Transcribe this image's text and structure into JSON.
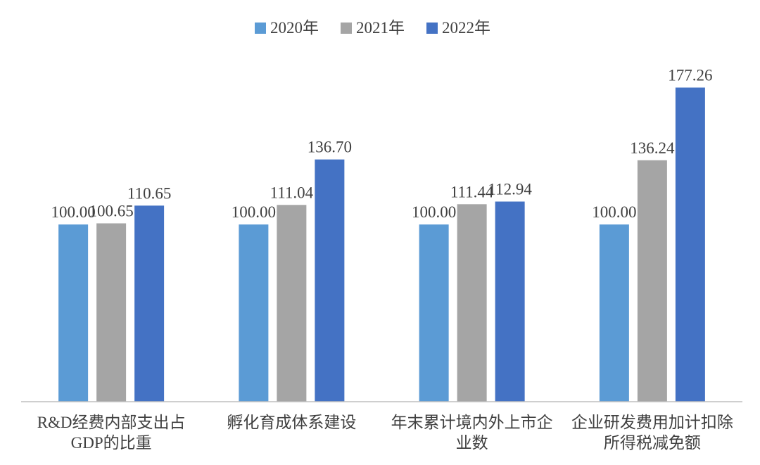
{
  "chart_data": {
    "type": "bar",
    "categories": [
      [
        "R&D经费内部支出占",
        "GDP的比重"
      ],
      [
        "孵化育成体系建设"
      ],
      [
        "年末累计境内外上市企",
        "业数"
      ],
      [
        "企业研发费用加计扣除",
        "所得税减免额"
      ]
    ],
    "series": [
      {
        "name": "2020年",
        "color": "#5b9bd5",
        "values": [
          100.0,
          100.0,
          100.0,
          100.0
        ]
      },
      {
        "name": "2021年",
        "color": "#a5a5a5",
        "values": [
          100.65,
          111.04,
          111.44,
          136.24
        ]
      },
      {
        "name": "2022年",
        "color": "#4472c4",
        "values": [
          110.65,
          136.7,
          112.94,
          177.26
        ]
      }
    ],
    "ylim": [
      0,
      185
    ],
    "legend_position": "top-center",
    "grid": false,
    "data_labels": true
  }
}
